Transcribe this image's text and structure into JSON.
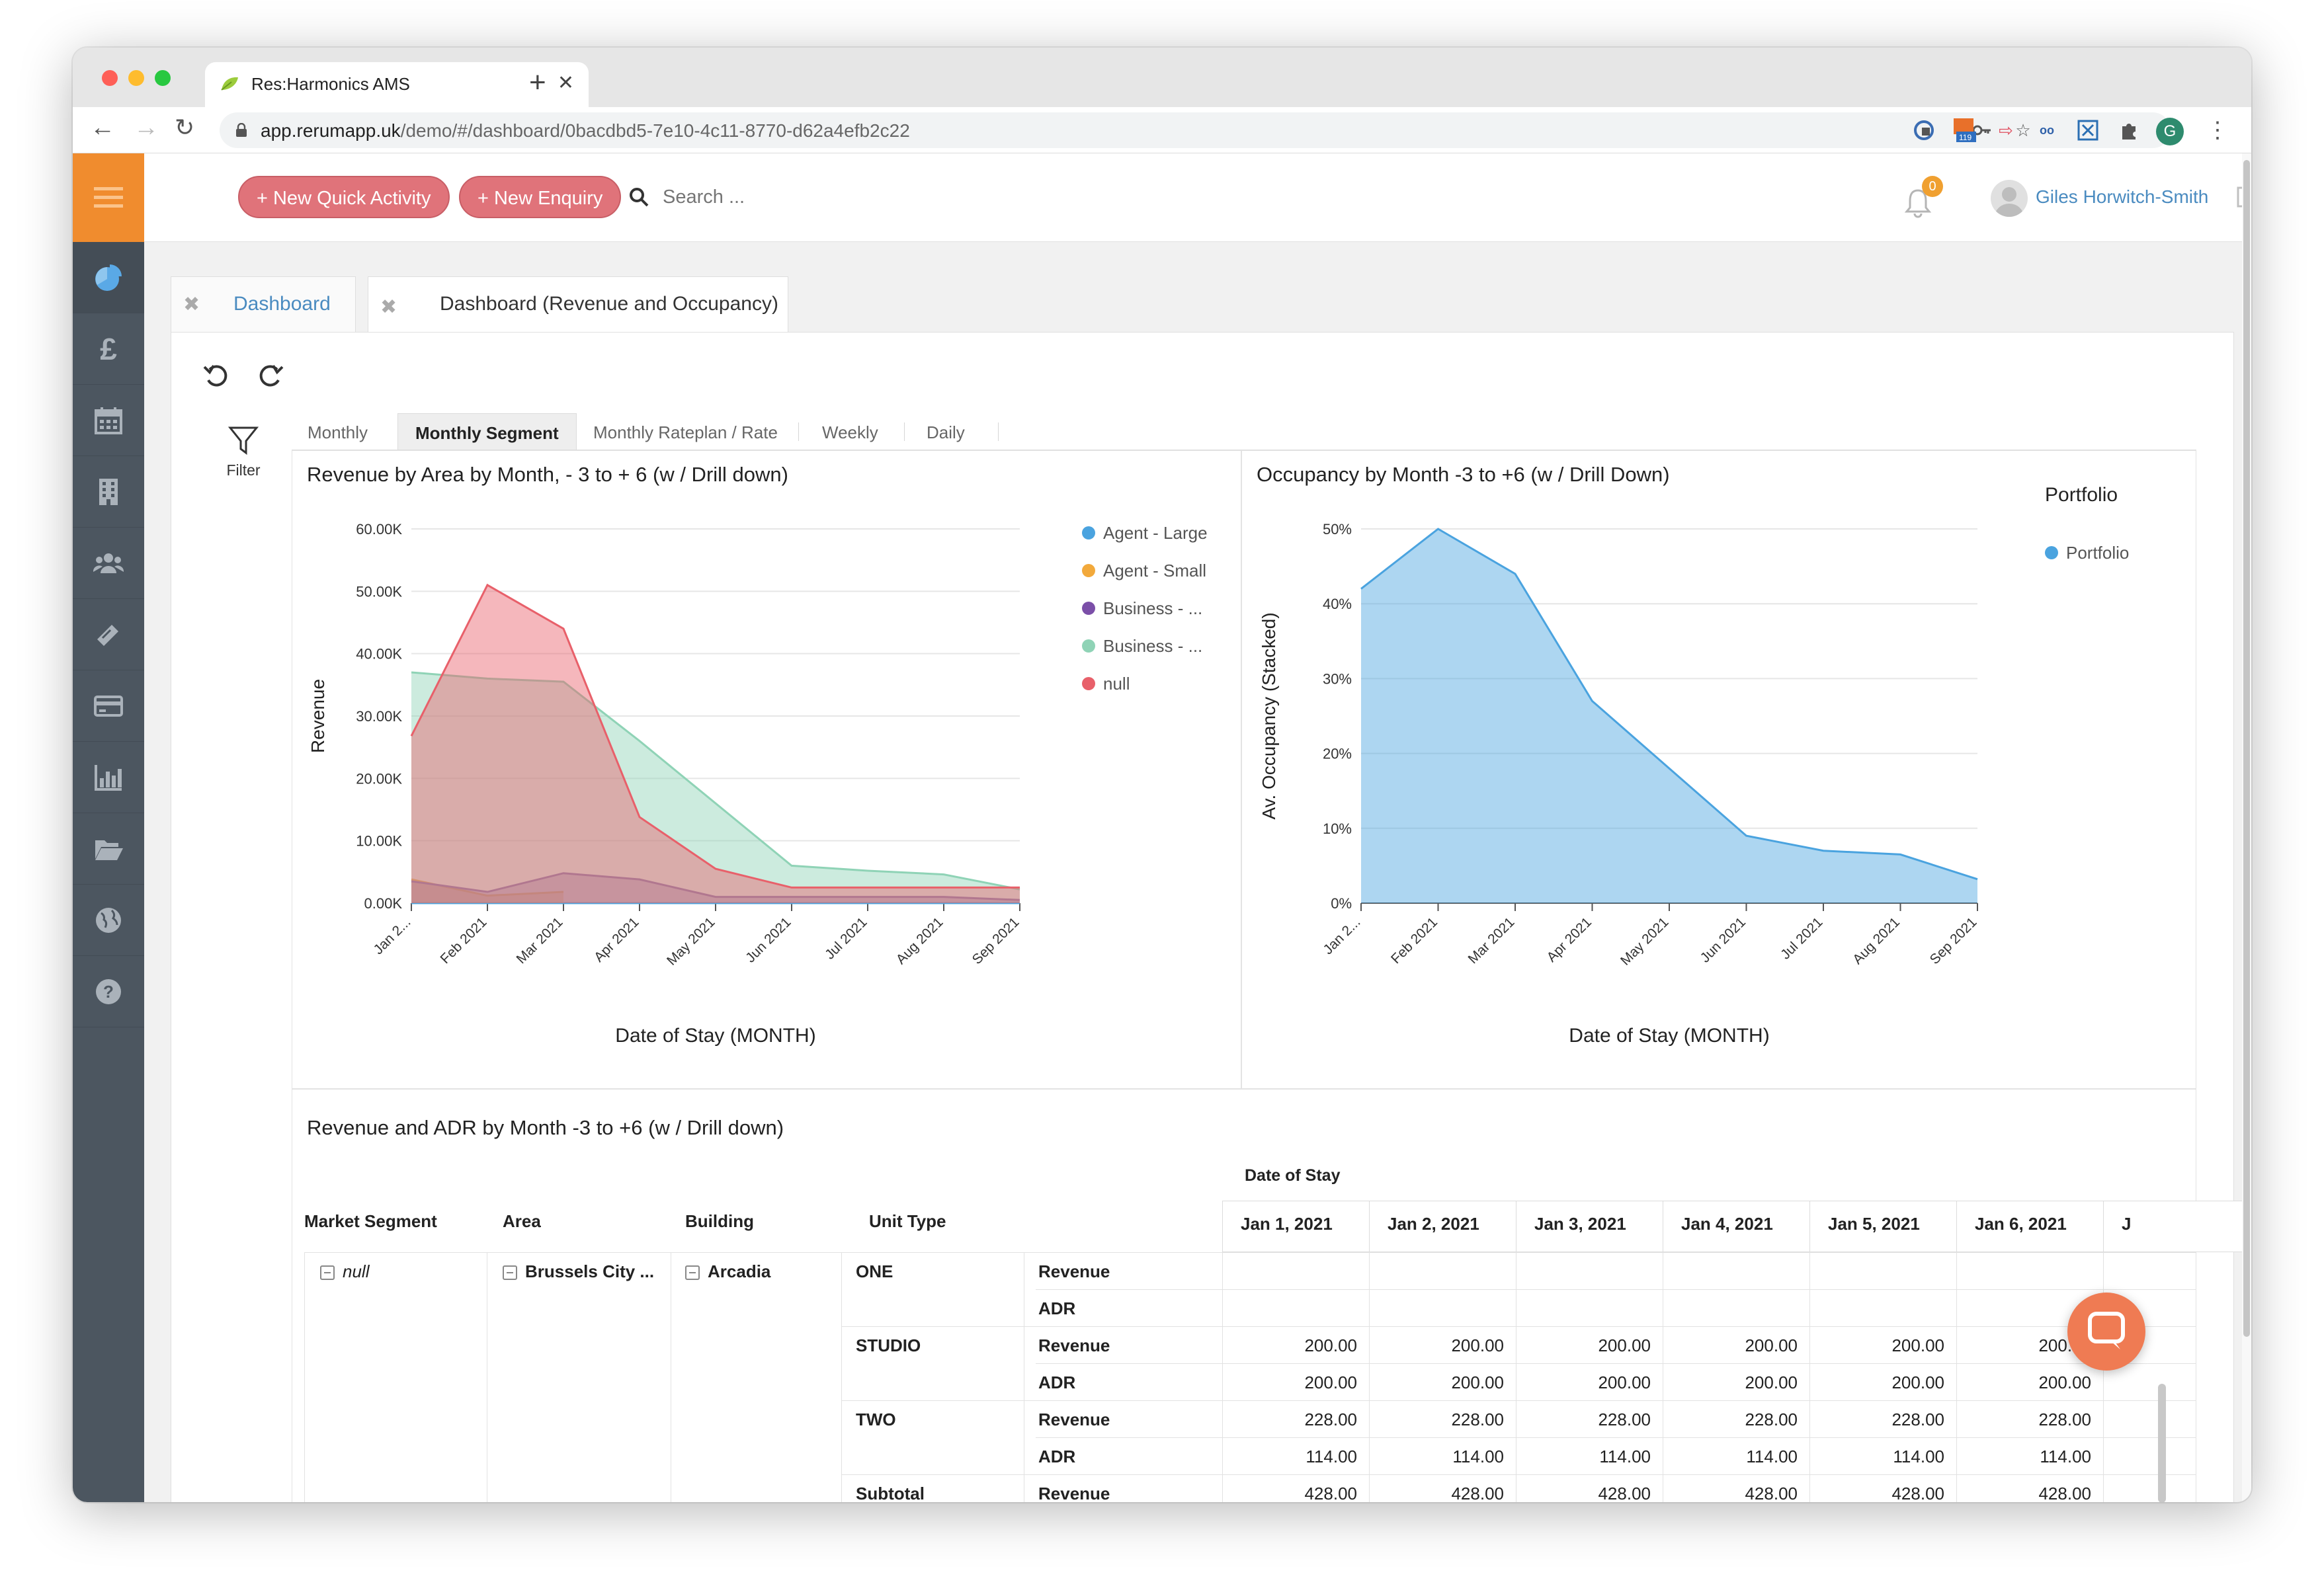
{
  "browser": {
    "tab_title": "Res:Harmonics AMS",
    "url_host": "app.rerumapp.uk",
    "url_path": "/demo/#/dashboard/0bacdbd5-7e10-4c11-8770-d62a4efb2c22",
    "extension_badge": "119",
    "profile_initial": "G"
  },
  "header": {
    "new_quick_activity": "+ New Quick Activity",
    "new_enquiry": "+ New Enquiry",
    "search_placeholder": "Search ...",
    "notification_count": "0",
    "user_name": "Giles Horwitch-Smith"
  },
  "sidebar": {
    "items": [
      "dashboard-icon",
      "pound-icon",
      "calendar-icon",
      "building-icon",
      "people-icon",
      "tag-icon",
      "card-icon",
      "bar-chart-icon",
      "folder-icon",
      "globe-icon",
      "help-icon"
    ]
  },
  "page_tabs": [
    {
      "label": "Dashboard"
    },
    {
      "label": "Dashboard (Revenue and Occupancy)"
    }
  ],
  "toolbar": {
    "filter_label": "Filter"
  },
  "subtabs": [
    "Monthly",
    "Monthly Segment",
    "Monthly Rateplan / Rate",
    "Weekly",
    "Daily"
  ],
  "chart_data": [
    {
      "type": "area",
      "title": "Revenue by Area by Month, - 3 to + 6 (w / Drill down)",
      "xlabel": "Date of Stay (MONTH)",
      "ylabel": "Revenue",
      "categories": [
        "Jan 2...",
        "Feb 2021",
        "Mar 2021",
        "Apr 2021",
        "May 2021",
        "Jun 2021",
        "Jul 2021",
        "Aug 2021",
        "Sep 2021"
      ],
      "y_ticks": [
        "0.00K",
        "10.00K",
        "20.00K",
        "30.00K",
        "40.00K",
        "50.00K",
        "60.00K"
      ],
      "ylim": [
        0,
        60000
      ],
      "legend_position": "right",
      "series": [
        {
          "name": "Agent - Large",
          "color": "#4aa3df",
          "values": [
            0,
            0,
            0,
            0,
            0,
            0,
            0,
            0,
            0
          ]
        },
        {
          "name": "Agent - Small",
          "color": "#f2a93b",
          "values": [
            3800,
            1200,
            1800,
            null,
            null,
            null,
            null,
            null,
            null
          ]
        },
        {
          "name": "Business - ...",
          "color": "#7b4fa8",
          "values": [
            3500,
            1800,
            4800,
            3800,
            1000,
            1000,
            1000,
            1000,
            500
          ]
        },
        {
          "name": "Business - ...",
          "color": "#8fd3b6",
          "values": [
            37000,
            36000,
            35500,
            26000,
            16000,
            6000,
            5200,
            4600,
            2200
          ]
        },
        {
          "name": "null",
          "color": "#e8606a",
          "values": [
            26800,
            51000,
            44000,
            13800,
            5500,
            2500,
            2500,
            2500,
            2500
          ]
        }
      ]
    },
    {
      "type": "area",
      "title": "Occupancy by Month -3 to +6 (w / Drill Down)",
      "xlabel": "Date of Stay (MONTH)",
      "ylabel": "Av. Occupancy (Stacked)",
      "legend_title": "Portfolio",
      "categories": [
        "Jan 2...",
        "Feb 2021",
        "Mar 2021",
        "Apr 2021",
        "May 2021",
        "Jun 2021",
        "Jul 2021",
        "Aug 2021",
        "Sep 2021"
      ],
      "y_ticks": [
        "0%",
        "10%",
        "20%",
        "30%",
        "40%",
        "50%"
      ],
      "ylim": [
        0,
        50
      ],
      "legend_position": "right",
      "series": [
        {
          "name": "Portfolio",
          "color": "#4aa3df",
          "values": [
            42,
            50,
            44,
            27,
            18,
            9,
            7,
            6.5,
            3.2
          ]
        }
      ]
    }
  ],
  "table": {
    "title": "Revenue and ADR by Month -3 to +6 (w / Drill down)",
    "column_group": "Date of Stay",
    "row_headers": [
      "Market Segment",
      "Area",
      "Building",
      "Unit Type"
    ],
    "date_columns": [
      "Jan 1, 2021",
      "Jan 2, 2021",
      "Jan 3, 2021",
      "Jan 4, 2021",
      "Jan 5, 2021",
      "Jan 6, 2021",
      "J"
    ],
    "market_segment": "null",
    "area": "Brussels City ...",
    "building": "Arcadia",
    "rows": [
      {
        "unit": "ONE",
        "measure": "Revenue",
        "values": [
          "",
          "",
          "",
          "",
          "",
          ""
        ]
      },
      {
        "unit": "",
        "measure": "ADR",
        "values": [
          "",
          "",
          "",
          "",
          "",
          ""
        ]
      },
      {
        "unit": "STUDIO",
        "measure": "Revenue",
        "values": [
          "200.00",
          "200.00",
          "200.00",
          "200.00",
          "200.00",
          "200.00"
        ]
      },
      {
        "unit": "",
        "measure": "ADR",
        "values": [
          "200.00",
          "200.00",
          "200.00",
          "200.00",
          "200.00",
          "200.00"
        ]
      },
      {
        "unit": "TWO",
        "measure": "Revenue",
        "values": [
          "228.00",
          "228.00",
          "228.00",
          "228.00",
          "228.00",
          "228.00"
        ]
      },
      {
        "unit": "",
        "measure": "ADR",
        "values": [
          "114.00",
          "114.00",
          "114.00",
          "114.00",
          "114.00",
          "114.00"
        ]
      },
      {
        "unit": "Subtotal",
        "measure": "Revenue",
        "values": [
          "428.00",
          "428.00",
          "428.00",
          "428.00",
          "428.00",
          "428.00"
        ]
      }
    ]
  }
}
